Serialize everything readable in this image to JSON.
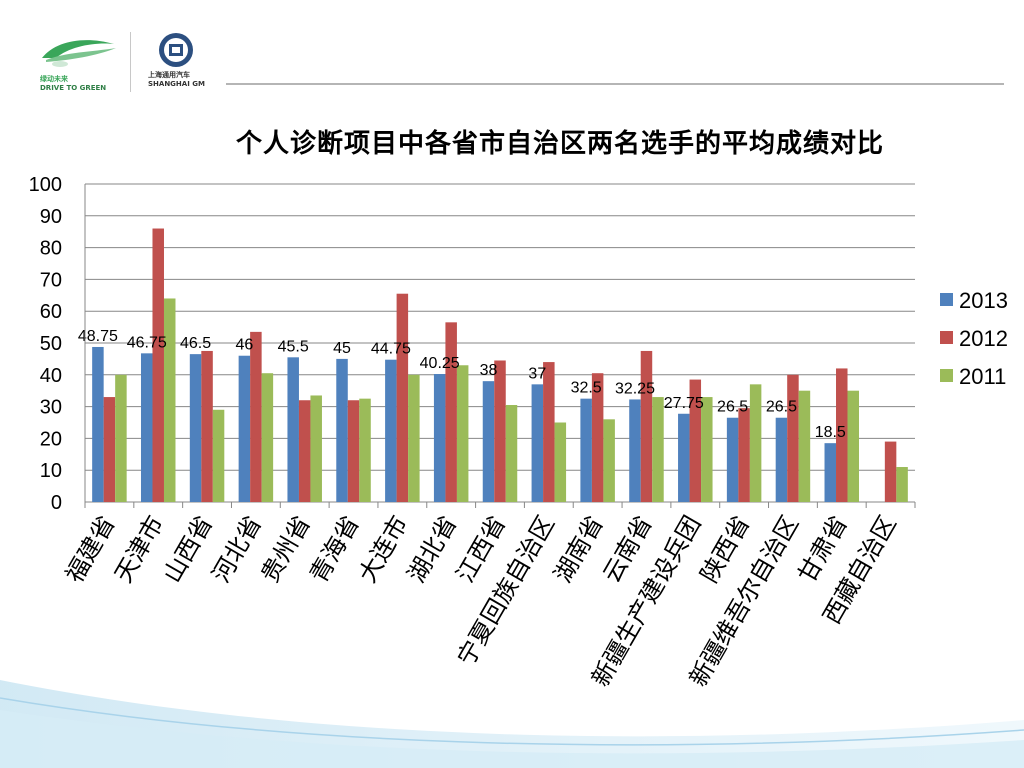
{
  "header": {
    "logo_left_cn": "绿动未来",
    "logo_left_en": "DRIVE TO GREEN",
    "logo_right_cn": "上海通用汽车",
    "logo_right_en": "SHANGHAI GM"
  },
  "chart_data": {
    "type": "bar",
    "title": "个人诊断项目中各省市自治区两名选手的平均成绩对比",
    "categories": [
      "福建省",
      "天津市",
      "山西省",
      "河北省",
      "贵州省",
      "青海省",
      "大连市",
      "湖北省",
      "江西省",
      "宁夏回族自治区",
      "湖南省",
      "云南省",
      "新疆生产建设兵团",
      "陕西省",
      "新疆维吾尔自治区",
      "甘肃省",
      "西藏自治区"
    ],
    "series": [
      {
        "name": "2013",
        "color": "#4f81bd",
        "values": [
          48.75,
          46.75,
          46.5,
          46,
          45.5,
          45,
          44.75,
          40.25,
          38,
          37,
          32.5,
          32.25,
          27.75,
          26.5,
          26.5,
          18.5,
          null
        ]
      },
      {
        "name": "2012",
        "color": "#c0504d",
        "values": [
          33,
          86,
          47.5,
          53.5,
          32,
          32,
          65.5,
          56.5,
          44.5,
          44,
          40.5,
          47.5,
          38.5,
          29.5,
          40,
          42,
          19
        ]
      },
      {
        "name": "2011",
        "color": "#9bbb59",
        "values": [
          40,
          64,
          29,
          40.5,
          33.5,
          32.5,
          40,
          43,
          30.5,
          25,
          26,
          33,
          33,
          37,
          35,
          35,
          11
        ]
      }
    ],
    "data_labels": [
      "48.75",
      "46.75",
      "46.5",
      "46",
      "45.5",
      "45",
      "44.75",
      "40.25",
      "38",
      "37",
      "32.5",
      "32.25",
      "27.75",
      "26.5",
      "26.5",
      "18.5",
      ""
    ],
    "yticks": [
      "0",
      "10",
      "20",
      "30",
      "40",
      "50",
      "60",
      "70",
      "80",
      "90",
      "100"
    ],
    "ylim": [
      0,
      100
    ],
    "grid": true,
    "legend_position": "right"
  }
}
